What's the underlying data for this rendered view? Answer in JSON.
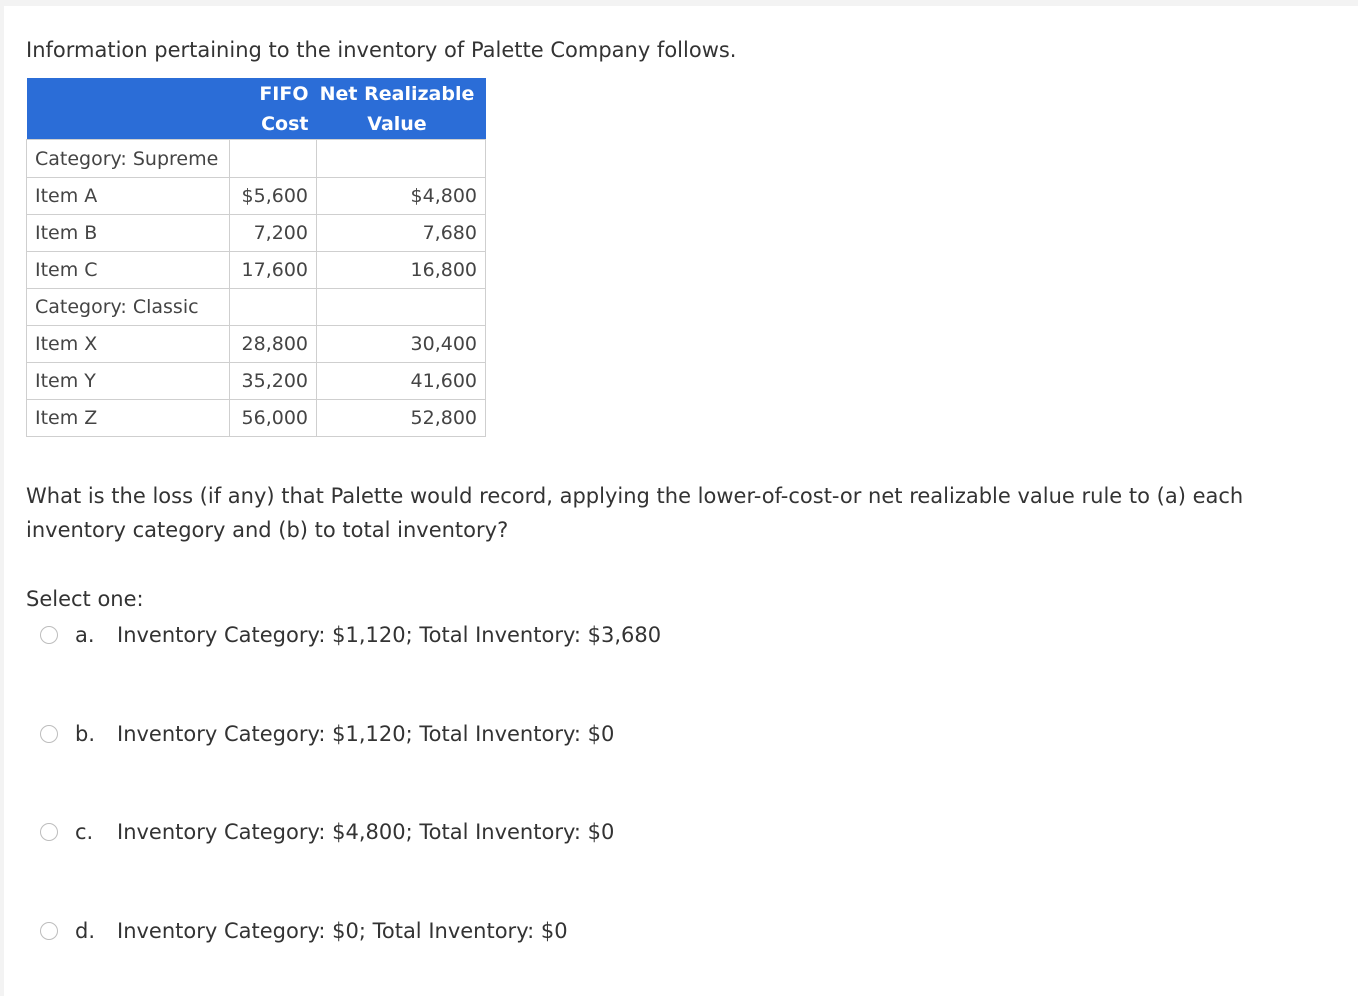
{
  "intro": "Information pertaining to the inventory of Palette Company follows.",
  "table": {
    "headers": {
      "item": "",
      "fifo_line1": "FIFO",
      "fifo_line2": "Cost",
      "nrv_line1": "Net Realizable",
      "nrv_line2": "Value"
    },
    "rows": [
      {
        "label": "Category: Supreme",
        "fifo": "",
        "nrv": ""
      },
      {
        "label": "Item A",
        "fifo": "$5,600",
        "nrv": "$4,800"
      },
      {
        "label": "Item B",
        "fifo": "7,200",
        "nrv": "7,680"
      },
      {
        "label": "Item C",
        "fifo": "17,600",
        "nrv": "16,800"
      },
      {
        "label": "Category: Classic",
        "fifo": "",
        "nrv": ""
      },
      {
        "label": "Item X",
        "fifo": "28,800",
        "nrv": "30,400"
      },
      {
        "label": "Item Y",
        "fifo": "35,200",
        "nrv": "41,600"
      },
      {
        "label": "Item Z",
        "fifo": "56,000",
        "nrv": "52,800"
      }
    ]
  },
  "question": "What is the loss (if any) that Palette would record, applying the lower-of-cost-or net realizable value rule to (a) each inventory category and (b) to total inventory?",
  "select_label": "Select one:",
  "options": [
    {
      "letter": "a.",
      "text": "Inventory Category: $1,120; Total Inventory: $3,680"
    },
    {
      "letter": "b.",
      "text": "Inventory Category: $1,120; Total Inventory: $0"
    },
    {
      "letter": "c.",
      "text": "Inventory Category: $4,800; Total Inventory: $0"
    },
    {
      "letter": "d.",
      "text": "Inventory Category: $0; Total Inventory: $0"
    }
  ]
}
